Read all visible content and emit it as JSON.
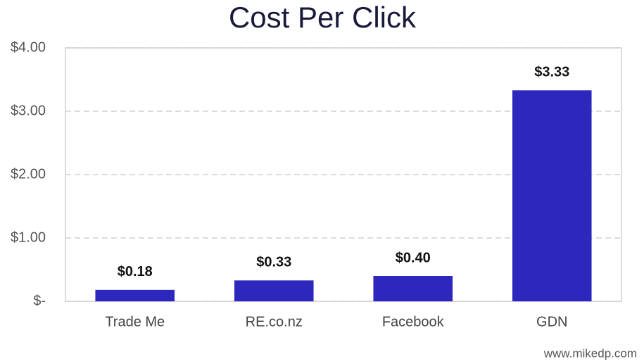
{
  "chart_data": {
    "type": "bar",
    "title": "Cost Per Click",
    "categories": [
      "Trade Me",
      "RE.co.nz",
      "Facebook",
      "GDN"
    ],
    "values": [
      0.18,
      0.33,
      0.4,
      3.33
    ],
    "value_labels": [
      "$0.18",
      "$0.33",
      "$0.40",
      "$3.33"
    ],
    "color": "#2e27bd",
    "ylim": [
      0,
      4
    ],
    "yticks": [
      {
        "value": 0,
        "label": "$-"
      },
      {
        "value": 1,
        "label": "$1.00"
      },
      {
        "value": 2,
        "label": "$2.00"
      },
      {
        "value": 3,
        "label": "$3.00"
      },
      {
        "value": 4,
        "label": "$4.00"
      }
    ],
    "grid": true,
    "source": "www.mikedp.com"
  }
}
